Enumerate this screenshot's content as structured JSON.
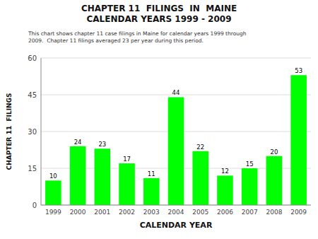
{
  "chart_data": {
    "type": "bar",
    "title": "CHAPTER 11  FILINGS  IN  MAINE\nCALENDAR YEARS 1999 - 2009",
    "subtitle": "This chart shows chapter 11 case filings in Maine for calendar years 1999 through\n2009.  Chapter 11 filings averaged 23 per year during this period.",
    "xlabel": "CALENDAR YEAR",
    "ylabel": "CHAPTER 11  FILINGS",
    "categories": [
      "1999",
      "2000",
      "2001",
      "2002",
      "2003",
      "2004",
      "2005",
      "2006",
      "2007",
      "2008",
      "2009"
    ],
    "values": [
      10,
      24,
      23,
      17,
      11,
      44,
      22,
      12,
      15,
      20,
      53
    ],
    "color": "#00FF00",
    "ylim": [
      0,
      60
    ],
    "yticks": [
      0,
      15,
      30,
      45,
      60
    ],
    "grid": true,
    "data_labels": true
  }
}
